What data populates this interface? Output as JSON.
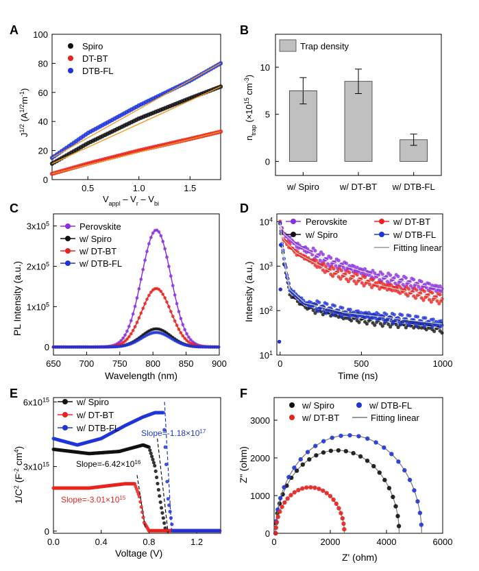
{
  "chart_data": [
    {
      "panel": "A",
      "type": "line",
      "xlabel": "V_appl – V_r – V_bi",
      "ylabel": "J^1/2 (A^1/2 m^-1)",
      "xlim": [
        0.15,
        1.8
      ],
      "ylim": [
        0,
        100
      ],
      "xticks": [
        0.5,
        1.0,
        1.5
      ],
      "yticks": [
        0,
        20,
        40,
        60,
        80,
        100
      ],
      "legend_position": "top-left",
      "series": [
        {
          "name": "Spiro",
          "color": "#111111",
          "x": [
            0.15,
            0.5,
            1.0,
            1.5,
            1.8
          ],
          "y": [
            11,
            25,
            42,
            56,
            64
          ]
        },
        {
          "name": "DT-BT",
          "color": "#e8231f",
          "x": [
            0.15,
            0.5,
            1.0,
            1.5,
            1.8
          ],
          "y": [
            4,
            11,
            20,
            28,
            33
          ]
        },
        {
          "name": "DTB-FL",
          "color": "#1f35d8",
          "x": [
            0.15,
            0.5,
            1.0,
            1.5,
            1.8
          ],
          "y": [
            15,
            32,
            51,
            68,
            80
          ]
        }
      ]
    },
    {
      "panel": "B",
      "type": "bar",
      "ylabel": "n_trap (×10^15 cm^-3)",
      "ylim": [
        -1.5,
        13.5
      ],
      "yticks": [
        0,
        5,
        10
      ],
      "categories": [
        "w/ Spiro",
        "w/ DT-BT",
        "w/ DTB-FL"
      ],
      "legend_position": "top-left",
      "series": [
        {
          "name": "Trap density",
          "color": "#c0c0c0",
          "values": [
            7.5,
            8.5,
            2.3
          ],
          "errors": [
            1.4,
            1.3,
            0.6
          ]
        }
      ]
    },
    {
      "panel": "C",
      "type": "line",
      "xlabel": "Wavelength (nm)",
      "ylabel": "PL Intensity (a.u.)",
      "xlim": [
        650,
        900
      ],
      "ylim": [
        -20000,
        330000
      ],
      "xticks": [
        650,
        700,
        750,
        800,
        850,
        900
      ],
      "yticks": [
        "0",
        "1x10^5",
        "2x10^5",
        "3x10^5"
      ],
      "legend_position": "top-left",
      "peak_center": 805,
      "peak_width": 22,
      "series": [
        {
          "name": "Perovskite",
          "color": "#8b2ee0",
          "peak": 290000
        },
        {
          "name": "w/ Spiro",
          "color": "#111111",
          "peak": 45000
        },
        {
          "name": "w/ DT-BT",
          "color": "#e8231f",
          "peak": 145000
        },
        {
          "name": "w/ DTB-FL",
          "color": "#1f35d8",
          "peak": 36000
        }
      ]
    },
    {
      "panel": "D",
      "type": "line",
      "xlabel": "Time (ns)",
      "ylabel": "Intensity (a.u.)",
      "xlim": [
        -20,
        1000
      ],
      "ylim": [
        10,
        15000
      ],
      "yscale": "log",
      "xticks": [
        0,
        500,
        1000
      ],
      "yticks": [
        "10^1",
        "10^2",
        "10^3",
        "10^4"
      ],
      "legend_position": "top",
      "series": [
        {
          "name": "Perovskite",
          "color": "#8b2ee0",
          "x": [
            0,
            20,
            100,
            300,
            600,
            1000
          ],
          "y": [
            9000,
            5500,
            3000,
            1300,
            600,
            300
          ]
        },
        {
          "name": "w/ DT-BT",
          "color": "#e8231f",
          "x": [
            0,
            20,
            100,
            300,
            600,
            1000
          ],
          "y": [
            9000,
            4000,
            2000,
            800,
            380,
            180
          ]
        },
        {
          "name": "w/ Spiro",
          "color": "#111111",
          "x": [
            0,
            20,
            60,
            150,
            400,
            1000
          ],
          "y": [
            9000,
            1500,
            250,
            130,
            75,
            40
          ]
        },
        {
          "name": "w/ DTB-FL",
          "color": "#1f35d8",
          "x": [
            0,
            20,
            60,
            150,
            400,
            1000
          ],
          "y": [
            9500,
            1800,
            300,
            150,
            90,
            50
          ]
        },
        {
          "name": "Fitting linear",
          "color": "#999999"
        }
      ]
    },
    {
      "panel": "E",
      "type": "line",
      "xlabel": "Voltage (V)",
      "ylabel": "1/C^2 (F^-2 cm^4)",
      "xlim": [
        0,
        1.4
      ],
      "ylim": [
        -0.1,
        6.2
      ],
      "xticks": [
        0.0,
        0.4,
        0.8,
        1.2
      ],
      "yticks": [
        "0",
        "3x10^15",
        "6x10^15"
      ],
      "legend_position": "top-left",
      "series": [
        {
          "name": "w/ Spiro",
          "color": "#111111",
          "x": [
            0,
            0.3,
            0.55,
            0.75,
            0.8,
            0.85,
            0.9,
            0.94,
            1.4
          ],
          "y": [
            3.8,
            3.6,
            3.7,
            4.0,
            3.9,
            3.0,
            1.2,
            0.02,
            0.02
          ]
        },
        {
          "name": "w/ DT-BT",
          "color": "#e8231f",
          "x": [
            0,
            0.3,
            0.6,
            0.68,
            0.72,
            0.76,
            0.8,
            1.4
          ],
          "y": [
            2.0,
            2.0,
            2.2,
            2.2,
            1.6,
            0.4,
            0.02,
            0.02
          ]
        },
        {
          "name": "w/ DTB-FL",
          "color": "#1f35d8",
          "x": [
            0,
            0.2,
            0.4,
            0.6,
            0.75,
            0.85,
            0.92,
            0.96,
            1.0,
            1.4
          ],
          "y": [
            4.3,
            4.0,
            4.3,
            4.9,
            5.3,
            5.5,
            5.5,
            1.5,
            0.02,
            0.02
          ]
        }
      ],
      "annotations": [
        "Slope=-1.18×10^17",
        "Slope=-6.42×10^16",
        "Slope=-3.01×10^15"
      ]
    },
    {
      "panel": "F",
      "type": "scatter",
      "xlabel": "Z' (ohm)",
      "ylabel": "Z\" (ohm)",
      "xlim": [
        0,
        6000
      ],
      "ylim": [
        0,
        3600
      ],
      "xticks": [
        0,
        2000,
        4000,
        6000
      ],
      "yticks": [
        0,
        1000,
        2000,
        3000
      ],
      "legend_position": "top",
      "series": [
        {
          "name": "w/ Spiro",
          "color": "#111111",
          "center": 2250,
          "radius": 2200
        },
        {
          "name": "w/ DTB-FL",
          "color": "#1f35d8",
          "center": 2650,
          "radius": 2600
        },
        {
          "name": "w/ DT-BT",
          "color": "#e8231f",
          "center": 1280,
          "radius": 1220
        },
        {
          "name": "Fitting linear",
          "color": "#777777"
        }
      ]
    }
  ]
}
